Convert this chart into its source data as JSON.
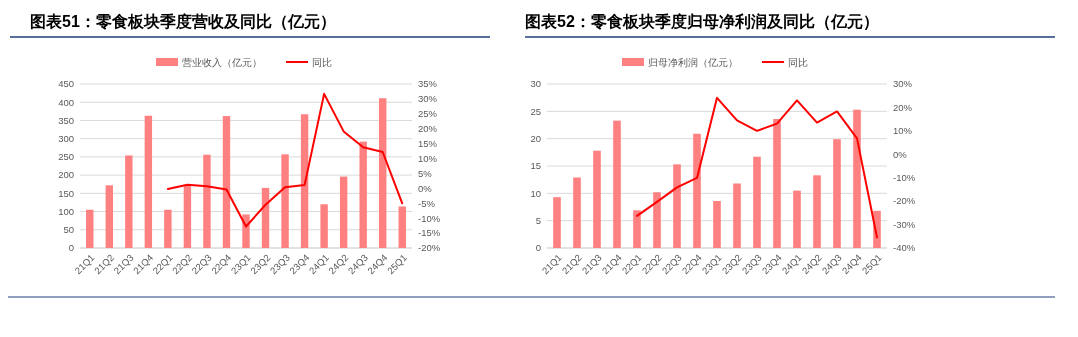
{
  "chart_data": [
    {
      "type": "bar",
      "title": "图表51：零食板块季度营收及同比（亿元）",
      "categories": [
        "21Q1",
        "21Q2",
        "21Q3",
        "21Q4",
        "22Q1",
        "22Q2",
        "22Q3",
        "22Q4",
        "23Q1",
        "23Q2",
        "23Q3",
        "23Q4",
        "24Q1",
        "24Q2",
        "24Q3",
        "24Q4",
        "25Q1"
      ],
      "series": [
        {
          "name": "营业收入（亿元）",
          "color": "#ff8080",
          "values": [
            105,
            172,
            254,
            363,
            105,
            173,
            256,
            362,
            92,
            165,
            257,
            367,
            120,
            196,
            292,
            411,
            114
          ]
        },
        {
          "name": "同比",
          "type": "line",
          "axis": "y2",
          "color": "#ff0000",
          "values": [
            null,
            null,
            null,
            null,
            -0.2,
            1.2,
            0.7,
            -0.4,
            -12.8,
            -5.5,
            0.4,
            1.1,
            31.7,
            19.1,
            13.8,
            12.2,
            -5.0
          ]
        }
      ],
      "ylim": [
        0,
        450
      ],
      "yticks": [
        0,
        50,
        100,
        150,
        200,
        250,
        300,
        350,
        400,
        450
      ],
      "y2lim": [
        -20,
        35
      ],
      "y2ticks": [
        {
          "value": -20,
          "label": "-20%"
        },
        {
          "value": -15,
          "label": "-15%"
        },
        {
          "value": -10,
          "label": "-10%"
        },
        {
          "value": -5,
          "label": "-5%"
        },
        {
          "value": 0,
          "label": "0%"
        },
        {
          "value": 5,
          "label": "5%"
        },
        {
          "value": 10,
          "label": "10%"
        },
        {
          "value": 15,
          "label": "15%"
        },
        {
          "value": 20,
          "label": "20%"
        },
        {
          "value": 25,
          "label": "25%"
        },
        {
          "value": 30,
          "label": "30%"
        },
        {
          "value": 35,
          "label": "35%"
        }
      ],
      "grid": "y",
      "legend": "top"
    },
    {
      "type": "bar",
      "title": "图表52：零食板块季度归母净利润及同比（亿元）",
      "categories": [
        "21Q1",
        "21Q2",
        "21Q3",
        "21Q4",
        "22Q1",
        "22Q2",
        "22Q3",
        "22Q4",
        "23Q1",
        "23Q2",
        "23Q3",
        "23Q4",
        "24Q1",
        "24Q2",
        "24Q3",
        "24Q4",
        "25Q1"
      ],
      "series": [
        {
          "name": "归母净利润（亿元）",
          "color": "#ff8080",
          "values": [
            9.3,
            12.9,
            17.8,
            23.3,
            6.9,
            10.2,
            15.3,
            20.9,
            8.6,
            11.8,
            16.7,
            23.6,
            10.5,
            13.3,
            19.9,
            25.3,
            6.8
          ]
        },
        {
          "name": "同比",
          "type": "line",
          "axis": "y2",
          "color": "#ff0000",
          "values": [
            null,
            null,
            null,
            null,
            -26.3,
            -20.3,
            -14.1,
            -10.1,
            24.1,
            14.5,
            10.0,
            13.1,
            23.0,
            13.5,
            18.3,
            6.8,
            -35.5
          ]
        }
      ],
      "ylim": [
        0,
        30
      ],
      "yticks": [
        0,
        5,
        10,
        15,
        20,
        25,
        30
      ],
      "y2lim": [
        -40,
        30
      ],
      "y2ticks": [
        {
          "value": -40,
          "label": "-40%"
        },
        {
          "value": -30,
          "label": "-30%"
        },
        {
          "value": -20,
          "label": "-20%"
        },
        {
          "value": -10,
          "label": "-10%"
        },
        {
          "value": 0,
          "label": "0%"
        },
        {
          "value": 10,
          "label": "10%"
        },
        {
          "value": 20,
          "label": "20%"
        },
        {
          "value": 30,
          "label": "30%"
        }
      ],
      "grid": "y",
      "legend": "top"
    }
  ]
}
